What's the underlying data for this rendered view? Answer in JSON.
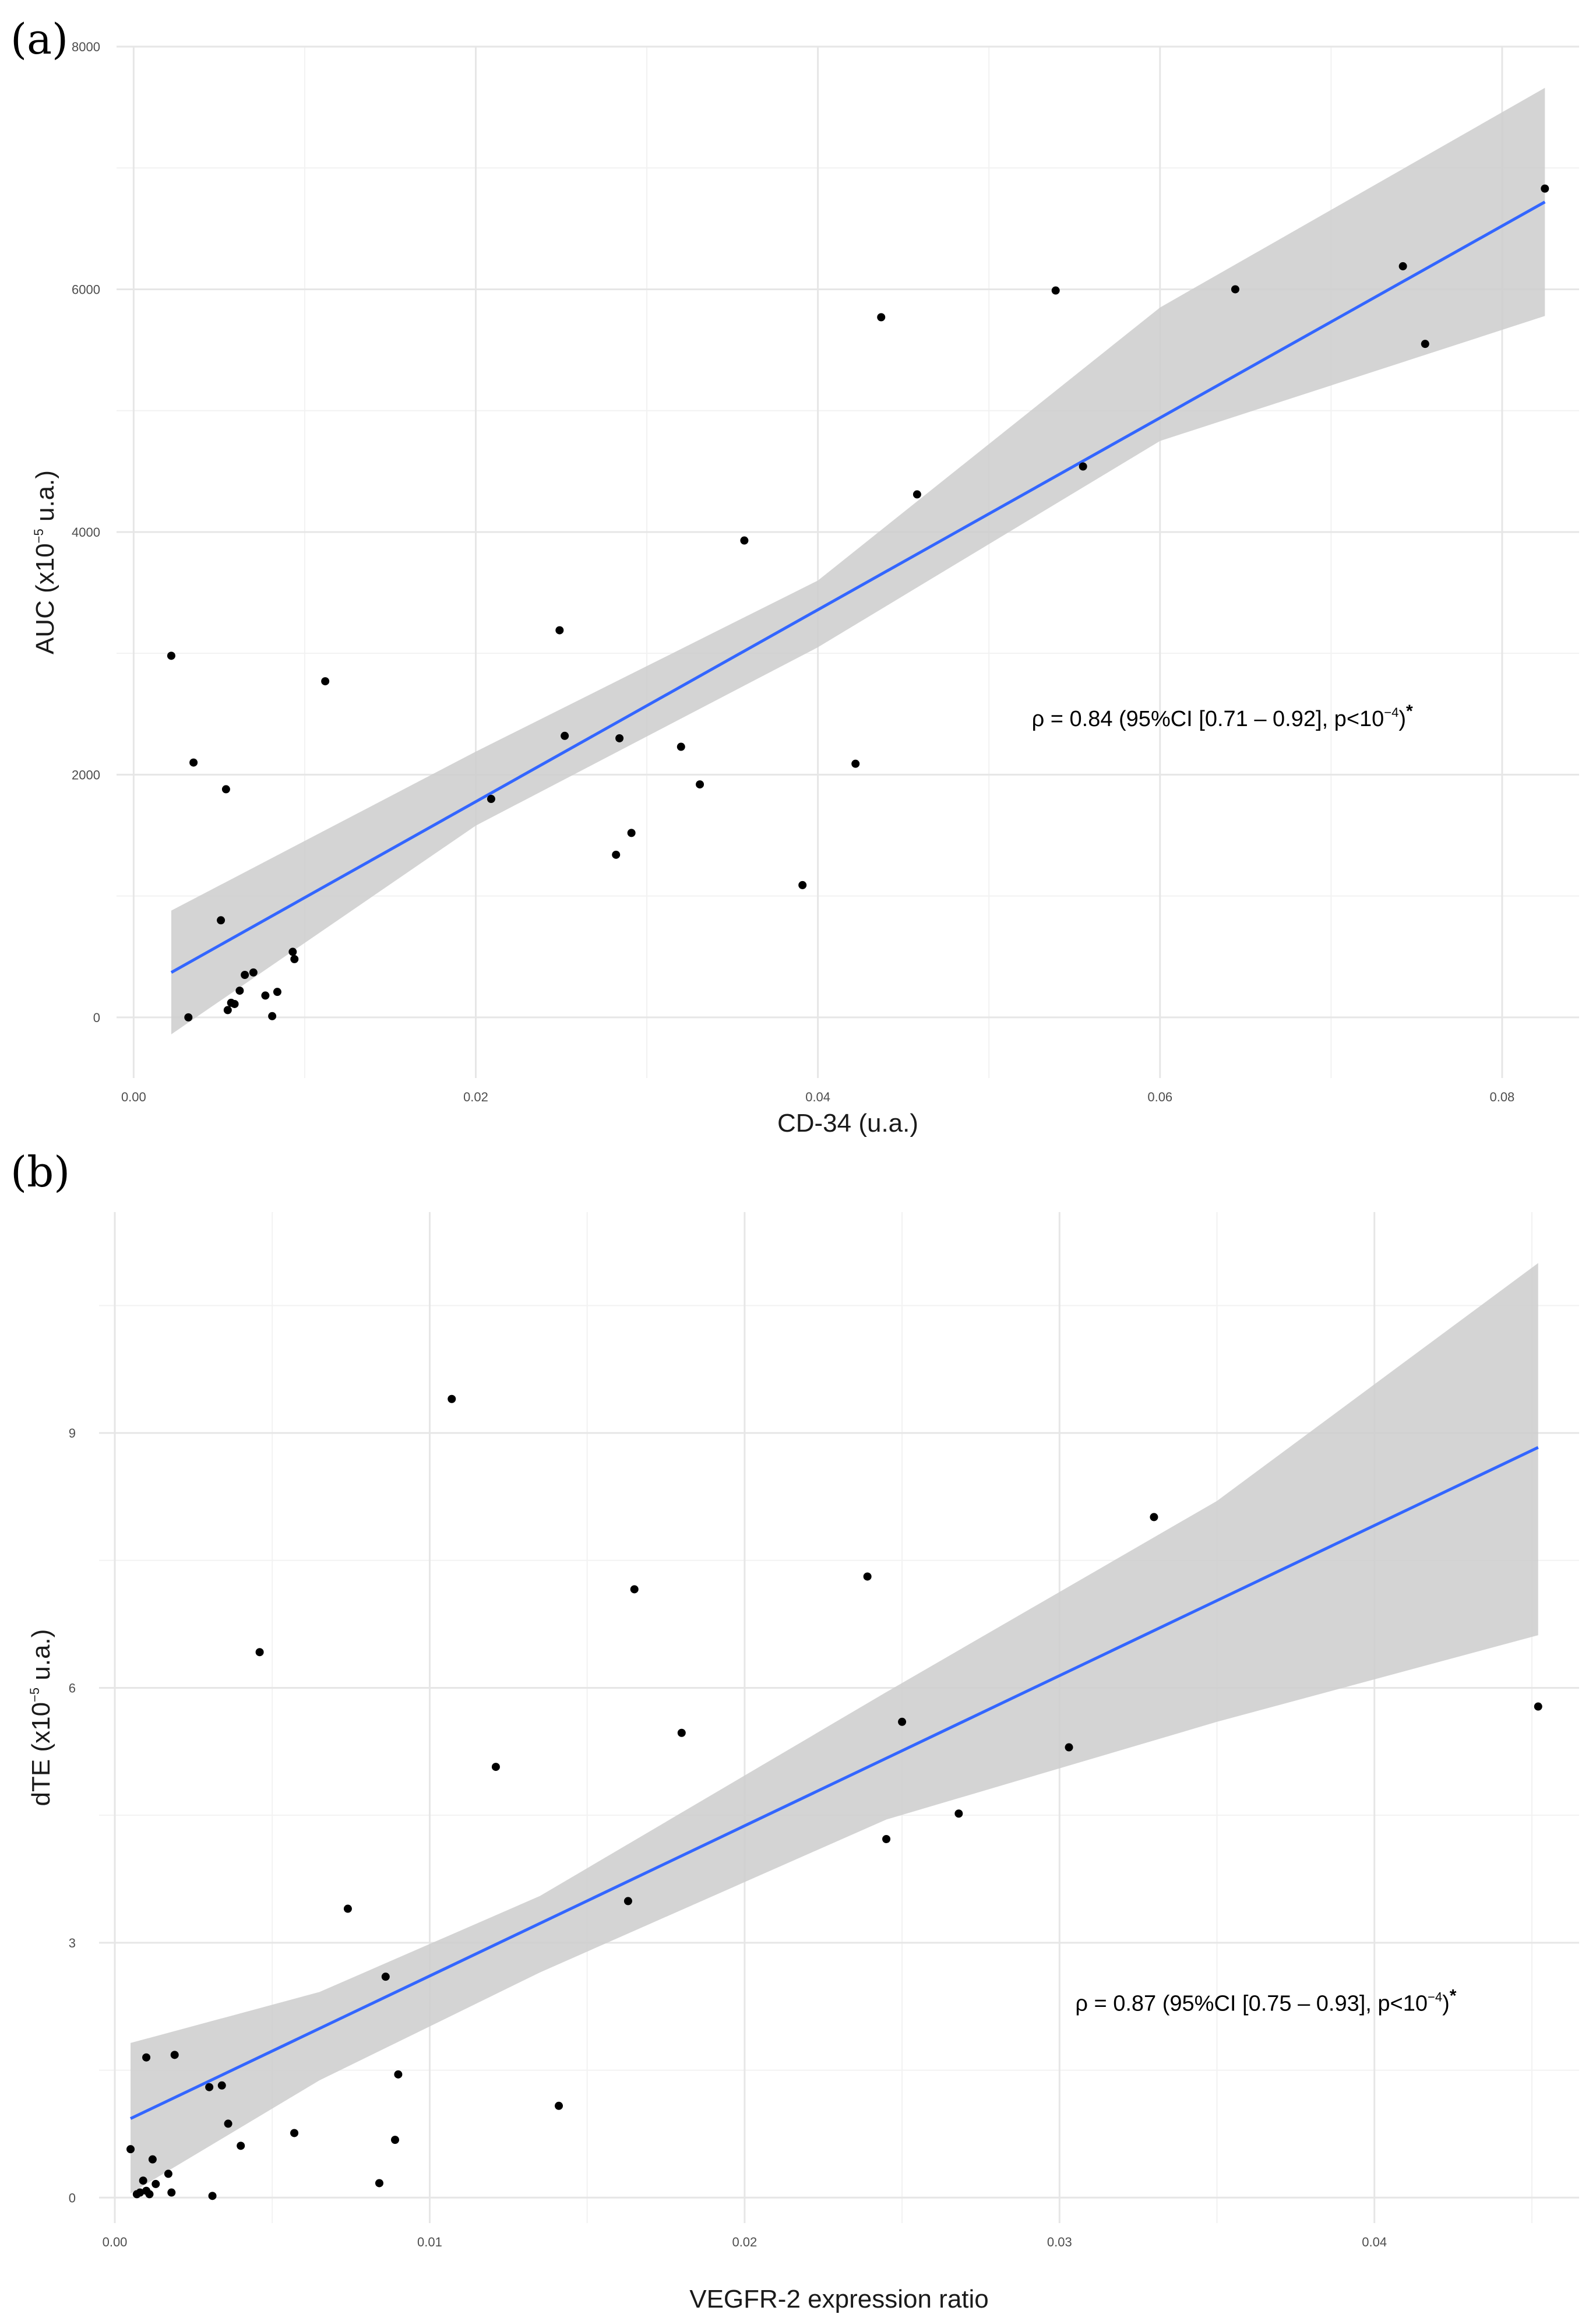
{
  "chart_data": [
    {
      "type": "scatter",
      "panel_label": "(a)",
      "title": "",
      "xlabel": "CD-34 (u.a.)",
      "ylabel_main": "AUC (x10",
      "ylabel_sup": "−5",
      "ylabel_end": " u.a.)",
      "xlim": [
        -0.001,
        0.0845
      ],
      "ylim": [
        -500,
        8000
      ],
      "x_ticks": [
        0.0,
        0.02,
        0.04,
        0.06,
        0.08
      ],
      "x_tick_labels": [
        "0.00",
        "0.02",
        "0.04",
        "0.06",
        "0.08"
      ],
      "y_ticks": [
        0,
        2000,
        4000,
        6000,
        8000
      ],
      "y_tick_labels": [
        "0",
        "2000",
        "4000",
        "6000",
        "8000"
      ],
      "grid": true,
      "regression": {
        "x0": 0.0022,
        "y0": 370,
        "x1": 0.0825,
        "y1": 6720
      },
      "ci_band": {
        "x": [
          0.0022,
          0.02,
          0.04,
          0.06,
          0.0825
        ],
        "lower": [
          -140,
          1580,
          3050,
          4750,
          5780
        ],
        "upper": [
          880,
          2190,
          3600,
          5850,
          7660
        ]
      },
      "annotation": {
        "main": "ρ = 0.84 (95%CI [0.71 – 0.92], p<10",
        "sup": "−4",
        "end": ")",
        "star": "*",
        "x": 0.0525,
        "y": 2400
      },
      "points": [
        {
          "x": 0.0022,
          "y": 2980
        },
        {
          "x": 0.0035,
          "y": 2100
        },
        {
          "x": 0.0054,
          "y": 1880
        },
        {
          "x": 0.0051,
          "y": 800
        },
        {
          "x": 0.0032,
          "y": 0
        },
        {
          "x": 0.0055,
          "y": 60
        },
        {
          "x": 0.0057,
          "y": 120
        },
        {
          "x": 0.0059,
          "y": 110
        },
        {
          "x": 0.0062,
          "y": 220
        },
        {
          "x": 0.0065,
          "y": 350
        },
        {
          "x": 0.007,
          "y": 370
        },
        {
          "x": 0.0077,
          "y": 180
        },
        {
          "x": 0.0081,
          "y": 10
        },
        {
          "x": 0.0084,
          "y": 210
        },
        {
          "x": 0.0093,
          "y": 540
        },
        {
          "x": 0.0094,
          "y": 480
        },
        {
          "x": 0.0112,
          "y": 2770
        },
        {
          "x": 0.0209,
          "y": 1800
        },
        {
          "x": 0.0249,
          "y": 3190
        },
        {
          "x": 0.0252,
          "y": 2320
        },
        {
          "x": 0.0282,
          "y": 1340
        },
        {
          "x": 0.0284,
          "y": 2300
        },
        {
          "x": 0.0291,
          "y": 1520
        },
        {
          "x": 0.032,
          "y": 2230
        },
        {
          "x": 0.0331,
          "y": 1920
        },
        {
          "x": 0.0357,
          "y": 3930
        },
        {
          "x": 0.0391,
          "y": 1090
        },
        {
          "x": 0.0422,
          "y": 2090
        },
        {
          "x": 0.0437,
          "y": 5770
        },
        {
          "x": 0.0458,
          "y": 4310
        },
        {
          "x": 0.0539,
          "y": 5990
        },
        {
          "x": 0.0555,
          "y": 4540
        },
        {
          "x": 0.0644,
          "y": 6000
        },
        {
          "x": 0.0742,
          "y": 6190
        },
        {
          "x": 0.0755,
          "y": 5550
        },
        {
          "x": 0.0825,
          "y": 6830
        }
      ]
    },
    {
      "type": "scatter",
      "panel_label": "(b)",
      "title": "",
      "xlabel": "VEGFR-2 expression ratio",
      "ylabel_main": "dTE (x10",
      "ylabel_sup": "−5",
      "ylabel_end": " u.a.)",
      "xlim": [
        -0.0005,
        0.0465
      ],
      "ylim": [
        -0.3,
        11.6
      ],
      "x_ticks": [
        0.0,
        0.01,
        0.02,
        0.03,
        0.04
      ],
      "x_tick_labels": [
        "0.00",
        "0.01",
        "0.02",
        "0.03",
        "0.04"
      ],
      "y_ticks": [
        0,
        3,
        6,
        9
      ],
      "y_tick_labels": [
        "0",
        "3",
        "6",
        "9"
      ],
      "grid": true,
      "regression": {
        "x0": 0.0005,
        "y0": 0.93,
        "x1": 0.0452,
        "y1": 8.83
      },
      "ci_band": {
        "x": [
          0.0005,
          0.0065,
          0.0135,
          0.0245,
          0.035,
          0.0452
        ],
        "lower": [
          0.05,
          1.38,
          2.65,
          4.45,
          5.6,
          6.62
        ],
        "upper": [
          1.82,
          2.42,
          3.55,
          5.95,
          8.2,
          11.0
        ]
      },
      "annotation": {
        "main": "ρ = 0.87 (95%CI [0.75 – 0.93], p<10",
        "sup": "−4",
        "end": ")",
        "star": "*",
        "x": 0.0305,
        "y": 2.2
      },
      "points": [
        {
          "x": 0.0005,
          "y": 0.57
        },
        {
          "x": 0.0007,
          "y": 0.04
        },
        {
          "x": 0.0008,
          "y": 0.06
        },
        {
          "x": 0.0009,
          "y": 0.2
        },
        {
          "x": 0.001,
          "y": 0.08
        },
        {
          "x": 0.001,
          "y": 1.65
        },
        {
          "x": 0.0011,
          "y": 0.04
        },
        {
          "x": 0.0012,
          "y": 0.45
        },
        {
          "x": 0.0013,
          "y": 0.16
        },
        {
          "x": 0.0017,
          "y": 0.28
        },
        {
          "x": 0.0018,
          "y": 0.06
        },
        {
          "x": 0.0019,
          "y": 1.68
        },
        {
          "x": 0.003,
          "y": 1.3
        },
        {
          "x": 0.0031,
          "y": 0.02
        },
        {
          "x": 0.0034,
          "y": 1.32
        },
        {
          "x": 0.0036,
          "y": 0.87
        },
        {
          "x": 0.004,
          "y": 0.61
        },
        {
          "x": 0.0046,
          "y": 6.42
        },
        {
          "x": 0.0057,
          "y": 0.76
        },
        {
          "x": 0.0074,
          "y": 3.4
        },
        {
          "x": 0.0084,
          "y": 0.17
        },
        {
          "x": 0.0086,
          "y": 2.6
        },
        {
          "x": 0.0089,
          "y": 0.68
        },
        {
          "x": 0.009,
          "y": 1.45
        },
        {
          "x": 0.0107,
          "y": 9.4
        },
        {
          "x": 0.0121,
          "y": 5.07
        },
        {
          "x": 0.0141,
          "y": 1.08
        },
        {
          "x": 0.0163,
          "y": 3.49
        },
        {
          "x": 0.0165,
          "y": 7.16
        },
        {
          "x": 0.018,
          "y": 5.47
        },
        {
          "x": 0.0239,
          "y": 7.31
        },
        {
          "x": 0.0245,
          "y": 4.22
        },
        {
          "x": 0.025,
          "y": 5.6
        },
        {
          "x": 0.0268,
          "y": 4.52
        },
        {
          "x": 0.0303,
          "y": 5.3
        },
        {
          "x": 0.033,
          "y": 8.01
        },
        {
          "x": 0.0452,
          "y": 5.78
        }
      ]
    }
  ],
  "colors": {
    "regression_line": "#3366ff",
    "ci_band": "#cccccc",
    "point": "#000000",
    "grid_major": "#e6e6e6",
    "grid_minor": "#f2f2f2"
  }
}
